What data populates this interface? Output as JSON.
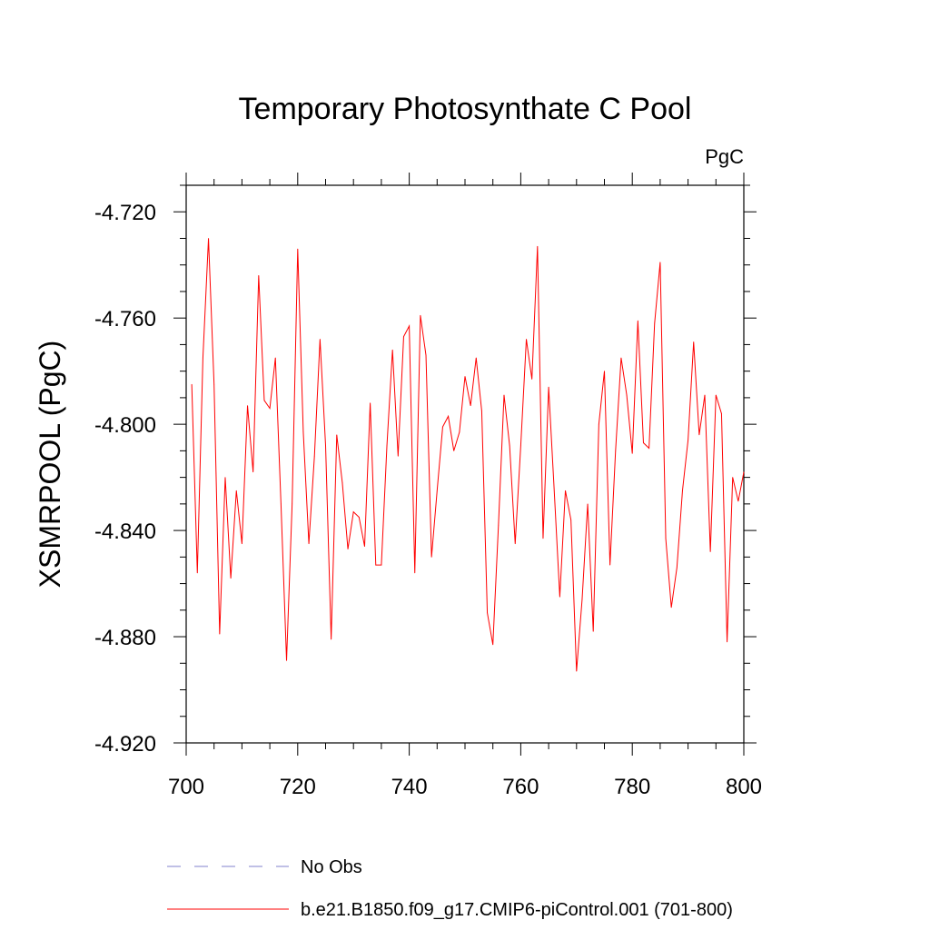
{
  "chart_data": {
    "type": "line",
    "title": "Temporary Photosynthate C Pool",
    "units": "PgC",
    "ylabel": "XSMRPOOL  (PgC)",
    "xlabel": "",
    "xlim": [
      700,
      800
    ],
    "ylim": [
      -4.92,
      -4.71
    ],
    "xticks": [
      700,
      720,
      740,
      760,
      780,
      800
    ],
    "xtick_labels": [
      "700",
      "720",
      "740",
      "760",
      "780",
      "800"
    ],
    "yticks": [
      -4.72,
      -4.76,
      -4.8,
      -4.84,
      -4.88,
      -4.92
    ],
    "ytick_labels": [
      "-4.720",
      "-4.760",
      "-4.800",
      "-4.840",
      "-4.880",
      "-4.920"
    ],
    "legend": [
      {
        "label": "No Obs",
        "color": "#8080cc",
        "style": "dashed"
      },
      {
        "label": "b.e21.B1850.f09_g17.CMIP6-piControl.001 (701-800)",
        "color": "#ff0000",
        "style": "solid"
      }
    ],
    "series": [
      {
        "name": "b.e21.B1850.f09_g17.CMIP6-piControl.001 (701-800)",
        "color": "#ff0000",
        "x": [
          701,
          702,
          703,
          704,
          705,
          706,
          707,
          708,
          709,
          710,
          711,
          712,
          713,
          714,
          715,
          716,
          717,
          718,
          719,
          720,
          721,
          722,
          723,
          724,
          725,
          726,
          727,
          728,
          729,
          730,
          731,
          732,
          733,
          734,
          735,
          736,
          737,
          738,
          739,
          740,
          741,
          742,
          743,
          744,
          745,
          746,
          747,
          748,
          749,
          750,
          751,
          752,
          753,
          754,
          755,
          756,
          757,
          758,
          759,
          760,
          761,
          762,
          763,
          764,
          765,
          766,
          767,
          768,
          769,
          770,
          771,
          772,
          773,
          774,
          775,
          776,
          777,
          778,
          779,
          780,
          781,
          782,
          783,
          784,
          785,
          786,
          787,
          788,
          789,
          790,
          791,
          792,
          793,
          794,
          795,
          796,
          797,
          798,
          799,
          800
        ],
        "values": [
          -4.785,
          -4.856,
          -4.775,
          -4.73,
          -4.785,
          -4.879,
          -4.82,
          -4.858,
          -4.825,
          -4.845,
          -4.793,
          -4.818,
          -4.744,
          -4.791,
          -4.794,
          -4.775,
          -4.83,
          -4.889,
          -4.83,
          -4.734,
          -4.803,
          -4.845,
          -4.812,
          -4.768,
          -4.808,
          -4.881,
          -4.804,
          -4.822,
          -4.847,
          -4.833,
          -4.835,
          -4.846,
          -4.792,
          -4.853,
          -4.853,
          -4.808,
          -4.772,
          -4.812,
          -4.767,
          -4.763,
          -4.856,
          -4.759,
          -4.774,
          -4.85,
          -4.825,
          -4.801,
          -4.797,
          -4.81,
          -4.803,
          -4.782,
          -4.793,
          -4.775,
          -4.795,
          -4.871,
          -4.883,
          -4.838,
          -4.789,
          -4.808,
          -4.845,
          -4.808,
          -4.768,
          -4.783,
          -4.733,
          -4.843,
          -4.786,
          -4.825,
          -4.865,
          -4.825,
          -4.836,
          -4.893,
          -4.866,
          -4.83,
          -4.878,
          -4.8,
          -4.78,
          -4.853,
          -4.81,
          -4.775,
          -4.789,
          -4.811,
          -4.761,
          -4.807,
          -4.809,
          -4.762,
          -4.739,
          -4.843,
          -4.869,
          -4.854,
          -4.825,
          -4.806,
          -4.769,
          -4.804,
          -4.789,
          -4.848,
          -4.789,
          -4.796,
          -4.882,
          -4.82,
          -4.829,
          -4.818
        ]
      }
    ]
  }
}
